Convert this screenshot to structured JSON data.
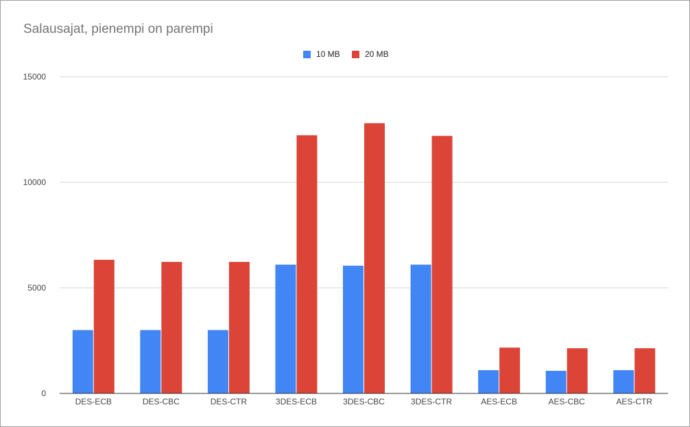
{
  "chart_data": {
    "type": "bar",
    "title": "Salausajat, pienempi on parempi",
    "xlabel": "",
    "ylabel": "",
    "ylim": [
      0,
      15000
    ],
    "yticks": [
      0,
      5000,
      10000,
      15000
    ],
    "grid": true,
    "legend_position": "top",
    "categories": [
      "DES-ECB",
      "DES-CBC",
      "DES-CTR",
      "3DES-ECB",
      "3DES-CBC",
      "3DES-CTR",
      "AES-ECB",
      "AES-CBC",
      "AES-CTR"
    ],
    "series": [
      {
        "name": "10 MB",
        "color": "#4285f4",
        "values": [
          3000,
          3000,
          3000,
          6100,
          6050,
          6100,
          1100,
          1070,
          1100
        ]
      },
      {
        "name": "20 MB",
        "color": "#db4437",
        "values": [
          6330,
          6230,
          6230,
          12230,
          12800,
          12200,
          2170,
          2140,
          2140
        ]
      }
    ]
  }
}
